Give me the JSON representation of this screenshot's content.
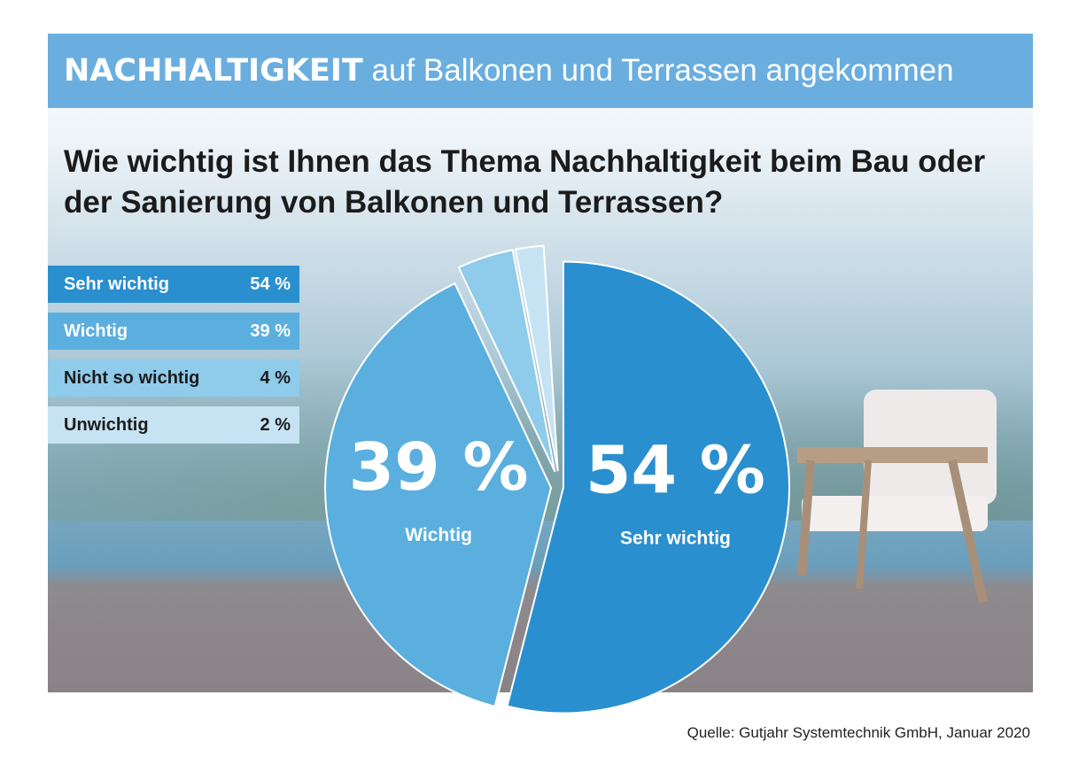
{
  "chart_data": {
    "type": "pie",
    "title": {
      "bold": "NACHHALTIGKEIT",
      "regular": "auf Balkonen und Terrassen angekommen"
    },
    "question": "Wie wichtig ist Ihnen das Thema Nachhaltigkeit beim Bau oder der Sanierung von Balkonen und Terrassen?",
    "categories": [
      "Sehr wichtig",
      "Wichtig",
      "Nicht so wichtig",
      "Unwichtig"
    ],
    "values": [
      54,
      39,
      4,
      2
    ],
    "value_labels": [
      "54 %",
      "39 %",
      "4 %",
      "2 %"
    ],
    "colors": [
      "#2a8fcf",
      "#5aafdf",
      "#8fcbea",
      "#c6e3f3"
    ],
    "source": "Quelle: Gutjahr Systemtechnik GmbH, Januar 2020"
  }
}
